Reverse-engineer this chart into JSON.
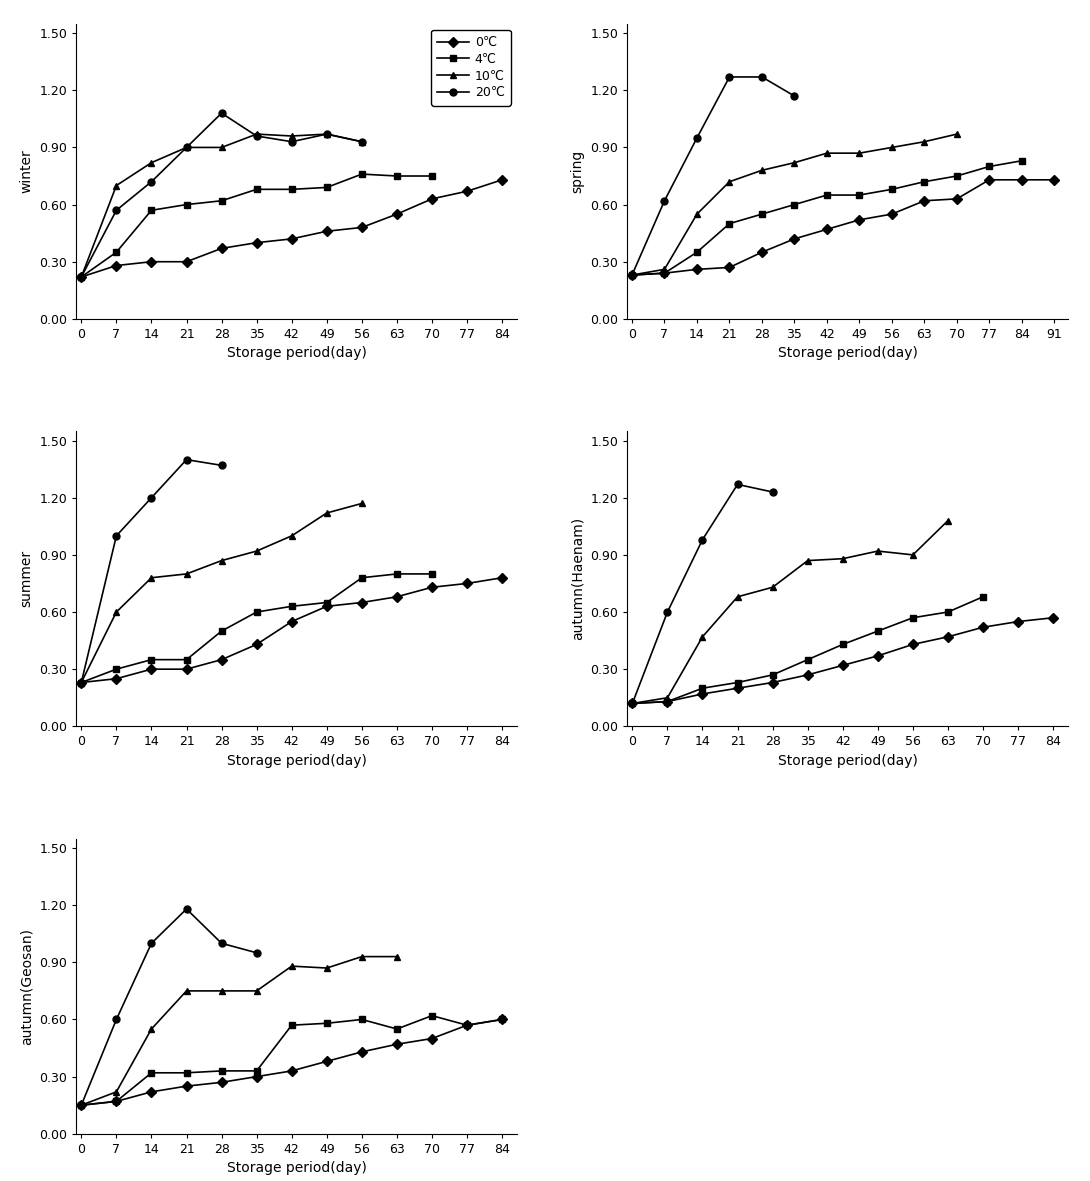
{
  "subplots": [
    {
      "label": "winter",
      "x_ticks": [
        0,
        7,
        14,
        21,
        28,
        35,
        42,
        49,
        56,
        63,
        70,
        77,
        84
      ],
      "xlim": [
        -1,
        87
      ],
      "series": {
        "0": [
          0,
          7,
          14,
          21,
          28,
          35,
          42,
          49,
          56,
          63,
          70,
          77,
          84
        ],
        "4": [
          0,
          7,
          14,
          21,
          28,
          35,
          42,
          49,
          56,
          63,
          70
        ],
        "10": [
          0,
          7,
          14,
          21,
          28,
          35,
          42,
          49,
          56
        ],
        "20": [
          0,
          7,
          14,
          21,
          28,
          35,
          42,
          49,
          56
        ]
      },
      "values": {
        "0": [
          0.22,
          0.28,
          0.3,
          0.3,
          0.37,
          0.4,
          0.42,
          0.46,
          0.48,
          0.55,
          0.63,
          0.67,
          0.73
        ],
        "4": [
          0.22,
          0.35,
          0.57,
          0.6,
          0.62,
          0.68,
          0.68,
          0.69,
          0.76,
          0.75,
          0.75
        ],
        "10": [
          0.22,
          0.7,
          0.82,
          0.9,
          0.9,
          0.97,
          0.96,
          0.97,
          0.93
        ],
        "20": [
          0.22,
          0.57,
          0.72,
          0.9,
          1.08,
          0.96,
          0.93,
          0.97,
          0.93
        ]
      },
      "has_legend": true
    },
    {
      "label": "spring",
      "x_ticks": [
        0,
        7,
        14,
        21,
        28,
        35,
        42,
        49,
        56,
        63,
        70,
        77,
        84,
        91
      ],
      "xlim": [
        -1,
        94
      ],
      "series": {
        "0": [
          0,
          7,
          14,
          21,
          28,
          35,
          42,
          49,
          56,
          63,
          70,
          77,
          84,
          91
        ],
        "4": [
          0,
          7,
          14,
          21,
          28,
          35,
          42,
          49,
          56,
          63,
          70,
          77,
          84
        ],
        "10": [
          0,
          7,
          14,
          21,
          28,
          35,
          42,
          49,
          56,
          63,
          70
        ],
        "20": [
          0,
          7,
          14,
          21,
          28,
          35
        ]
      },
      "values": {
        "0": [
          0.23,
          0.24,
          0.26,
          0.27,
          0.35,
          0.42,
          0.47,
          0.52,
          0.55,
          0.62,
          0.63,
          0.73,
          0.73,
          0.73
        ],
        "4": [
          0.23,
          0.24,
          0.35,
          0.5,
          0.55,
          0.6,
          0.65,
          0.65,
          0.68,
          0.72,
          0.75,
          0.8,
          0.83
        ],
        "10": [
          0.23,
          0.26,
          0.55,
          0.72,
          0.78,
          0.82,
          0.87,
          0.87,
          0.9,
          0.93,
          0.97
        ],
        "20": [
          0.23,
          0.62,
          0.95,
          1.27,
          1.27,
          1.17
        ]
      },
      "has_legend": false
    },
    {
      "label": "summer",
      "x_ticks": [
        0,
        7,
        14,
        21,
        28,
        35,
        42,
        49,
        56,
        63,
        70,
        77,
        84
      ],
      "xlim": [
        -1,
        87
      ],
      "series": {
        "0": [
          0,
          7,
          14,
          21,
          28,
          35,
          42,
          49,
          56,
          63,
          70,
          77,
          84
        ],
        "4": [
          0,
          7,
          14,
          21,
          28,
          35,
          42,
          49,
          56,
          63,
          70
        ],
        "10": [
          0,
          7,
          14,
          21,
          28,
          35,
          42,
          49,
          56
        ],
        "20": [
          0,
          7,
          14,
          21,
          28
        ]
      },
      "values": {
        "0": [
          0.23,
          0.25,
          0.3,
          0.3,
          0.35,
          0.43,
          0.55,
          0.63,
          0.65,
          0.68,
          0.73,
          0.75,
          0.78
        ],
        "4": [
          0.23,
          0.3,
          0.35,
          0.35,
          0.5,
          0.6,
          0.63,
          0.65,
          0.78,
          0.8,
          0.8
        ],
        "10": [
          0.23,
          0.6,
          0.78,
          0.8,
          0.87,
          0.92,
          1.0,
          1.12,
          1.17
        ],
        "20": [
          0.23,
          1.0,
          1.2,
          1.4,
          1.37
        ]
      },
      "has_legend": false
    },
    {
      "label": "autumn(Haenam)",
      "x_ticks": [
        0,
        7,
        14,
        21,
        28,
        35,
        42,
        49,
        56,
        63,
        70,
        77,
        84
      ],
      "xlim": [
        -1,
        87
      ],
      "series": {
        "0": [
          0,
          7,
          14,
          21,
          28,
          35,
          42,
          49,
          56,
          63,
          70,
          77,
          84
        ],
        "4": [
          0,
          7,
          14,
          21,
          28,
          35,
          42,
          49,
          56,
          63,
          70
        ],
        "10": [
          0,
          7,
          14,
          21,
          28,
          35,
          42,
          49,
          56,
          63
        ],
        "20": [
          0,
          7,
          14,
          21,
          28
        ]
      },
      "values": {
        "0": [
          0.12,
          0.13,
          0.17,
          0.2,
          0.23,
          0.27,
          0.32,
          0.37,
          0.43,
          0.47,
          0.52,
          0.55,
          0.57
        ],
        "4": [
          0.12,
          0.13,
          0.2,
          0.23,
          0.27,
          0.35,
          0.43,
          0.5,
          0.57,
          0.6,
          0.68
        ],
        "10": [
          0.12,
          0.15,
          0.47,
          0.68,
          0.73,
          0.87,
          0.88,
          0.92,
          0.9,
          1.08
        ],
        "20": [
          0.12,
          0.6,
          0.98,
          1.27,
          1.23
        ]
      },
      "has_legend": false
    },
    {
      "label": "autumn(Geosan)",
      "x_ticks": [
        0,
        7,
        14,
        21,
        28,
        35,
        42,
        49,
        56,
        63,
        70,
        77,
        84
      ],
      "xlim": [
        -1,
        87
      ],
      "series": {
        "0": [
          0,
          7,
          14,
          21,
          28,
          35,
          42,
          49,
          56,
          63,
          70,
          77,
          84
        ],
        "4": [
          0,
          7,
          14,
          21,
          28,
          35,
          42,
          49,
          56,
          63,
          70,
          77,
          84
        ],
        "10": [
          0,
          7,
          14,
          21,
          28,
          35,
          42,
          49,
          56,
          63
        ],
        "20": [
          0,
          7,
          14,
          21,
          28,
          35
        ]
      },
      "values": {
        "0": [
          0.15,
          0.17,
          0.22,
          0.25,
          0.27,
          0.3,
          0.33,
          0.38,
          0.43,
          0.47,
          0.5,
          0.57,
          0.6
        ],
        "4": [
          0.15,
          0.17,
          0.32,
          0.32,
          0.33,
          0.33,
          0.57,
          0.58,
          0.6,
          0.55,
          0.62,
          0.57,
          0.6
        ],
        "10": [
          0.15,
          0.22,
          0.55,
          0.75,
          0.75,
          0.75,
          0.88,
          0.87,
          0.93,
          0.93
        ],
        "20": [
          0.15,
          0.6,
          1.0,
          1.18,
          1.0,
          0.95
        ]
      },
      "has_legend": false
    }
  ],
  "temps": [
    "0",
    "4",
    "10",
    "20"
  ],
  "marker_map": {
    "0": "D",
    "4": "s",
    "10": "^",
    "20": "o"
  },
  "temp_labels": {
    "0": "0℃",
    "4": "4℃",
    "10": "10℃",
    "20": "20℃"
  },
  "ylim": [
    0.0,
    1.55
  ],
  "yticks": [
    0.0,
    0.3,
    0.6,
    0.9,
    1.2,
    1.5
  ],
  "ylabel_fontsize": 10,
  "xlabel_fontsize": 10,
  "tick_fontsize": 9,
  "legend_fontsize": 9,
  "xlabel": "Storage period(day)",
  "background_color": "#ffffff",
  "linewidth": 1.2,
  "markersize": 5
}
